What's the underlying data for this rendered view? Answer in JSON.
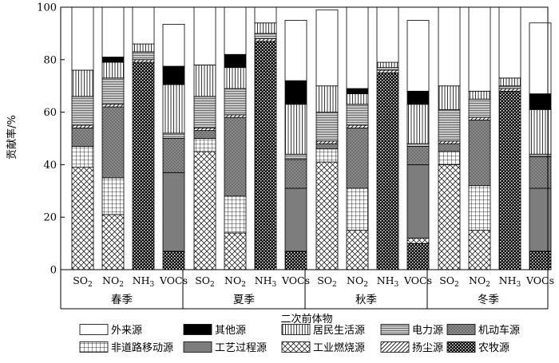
{
  "chart_data": {
    "type": "bar",
    "stacked": true,
    "xlabel": "二次前体物",
    "ylabel": "贡献率/%",
    "ylim": [
      0,
      100
    ],
    "yticks": [
      0,
      20,
      40,
      60,
      80,
      100
    ],
    "groups": [
      "春季",
      "夏季",
      "秋季",
      "冬季"
    ],
    "pollutants": [
      {
        "main": "SO",
        "sub": "2"
      },
      {
        "main": "NO",
        "sub": "2"
      },
      {
        "main": "NH",
        "sub": "3"
      },
      {
        "main": "VOCs",
        "sub": ""
      }
    ],
    "series": [
      {
        "name": "农牧源",
        "pattern": "dense-check"
      },
      {
        "name": "工业燃烧源",
        "pattern": "diamond"
      },
      {
        "name": "非道路移动源",
        "pattern": "grid"
      },
      {
        "name": "工艺过程源",
        "pattern": "solid-gray"
      },
      {
        "name": "机动车源",
        "pattern": "dotted"
      },
      {
        "name": "扬尘源",
        "pattern": "diagonal"
      },
      {
        "name": "电力源",
        "pattern": "horizontal"
      },
      {
        "name": "居民生活源",
        "pattern": "vertical"
      },
      {
        "name": "其他源",
        "pattern": "black"
      },
      {
        "name": "外来源",
        "pattern": "white"
      }
    ],
    "stacks": {
      "春季": {
        "SO2": [
          0,
          39,
          8,
          0,
          7,
          1,
          11,
          10,
          0,
          24
        ],
        "NO2": [
          0,
          21,
          14,
          0,
          27,
          1,
          10,
          6,
          2,
          19
        ],
        "NH3": [
          79,
          0,
          0,
          0,
          0,
          1,
          3,
          3,
          0,
          14
        ],
        "VOCs": [
          7,
          0,
          0,
          30,
          13,
          0,
          2,
          18.5,
          7,
          16
        ]
      },
      "夏季": {
        "SO2": [
          0,
          45,
          5,
          0,
          3,
          1,
          12,
          12,
          0,
          22
        ],
        "NO2": [
          0,
          14,
          14,
          0,
          30,
          1,
          10,
          8,
          5,
          18
        ],
        "NH3": [
          87,
          0,
          0,
          0,
          0,
          1,
          2,
          4,
          0,
          6
        ],
        "VOCs": [
          7,
          0,
          0,
          24,
          11,
          0,
          2,
          19,
          9,
          23
        ]
      },
      "秋季": {
        "SO2": [
          0,
          41,
          5,
          0,
          2,
          1,
          11,
          10,
          0,
          29
        ],
        "NO2": [
          0,
          15,
          16,
          0,
          23,
          1,
          8,
          4,
          2,
          31
        ],
        "NH3": [
          75,
          0,
          0,
          0,
          0,
          1,
          1,
          2,
          0,
          21
        ],
        "VOCs": [
          10,
          2,
          0,
          28,
          7,
          0,
          1,
          15,
          5,
          27
        ]
      },
      "冬季": {
        "SO2": [
          0,
          40,
          5,
          0,
          3,
          1,
          12,
          9,
          0,
          30
        ],
        "NO2": [
          0,
          15,
          17,
          0,
          25,
          1,
          7,
          3,
          0,
          32
        ],
        "NH3": [
          68,
          0,
          0,
          0,
          0,
          1,
          1,
          3,
          0,
          27
        ],
        "VOCs": [
          7,
          0,
          0,
          24,
          12,
          0,
          1,
          17,
          6,
          27
        ]
      }
    },
    "legend_rows": [
      [
        "外来源",
        "其他源",
        "居民生活源",
        "电力源",
        "机动车源"
      ],
      [
        "非道路移动源",
        "工艺过程源",
        "工业燃烧源",
        "扬尘源",
        "农牧源"
      ]
    ]
  }
}
